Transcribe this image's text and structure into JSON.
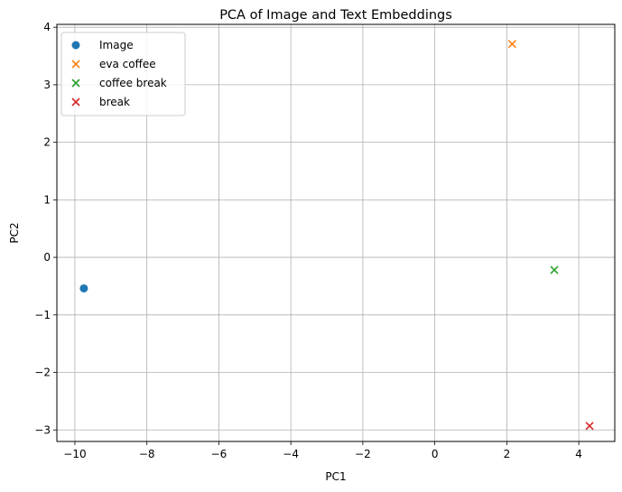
{
  "chart_data": {
    "type": "scatter",
    "title": "PCA of Image and Text Embeddings",
    "xlabel": "PC1",
    "ylabel": "PC2",
    "xlim": [
      -10.5,
      5.0
    ],
    "ylim": [
      -3.2,
      4.05
    ],
    "xticks": [
      -10,
      -8,
      -6,
      -4,
      -2,
      0,
      2,
      4
    ],
    "yticks": [
      -3,
      -2,
      -1,
      0,
      1,
      2,
      3,
      4
    ],
    "grid": true,
    "legend_position": "top-left",
    "series": [
      {
        "name": "Image",
        "marker": "circle",
        "color": "#1f77b4",
        "points": [
          [
            -9.75,
            -0.54
          ]
        ]
      },
      {
        "name": "eva coffee",
        "marker": "x",
        "color": "#ff7f0e",
        "points": [
          [
            2.15,
            3.71
          ]
        ]
      },
      {
        "name": "coffee break",
        "marker": "x",
        "color": "#2ca02c",
        "points": [
          [
            3.32,
            -0.22
          ]
        ]
      },
      {
        "name": "break",
        "marker": "x",
        "color": "#d62728",
        "points": [
          [
            4.3,
            -2.93
          ]
        ]
      }
    ]
  }
}
